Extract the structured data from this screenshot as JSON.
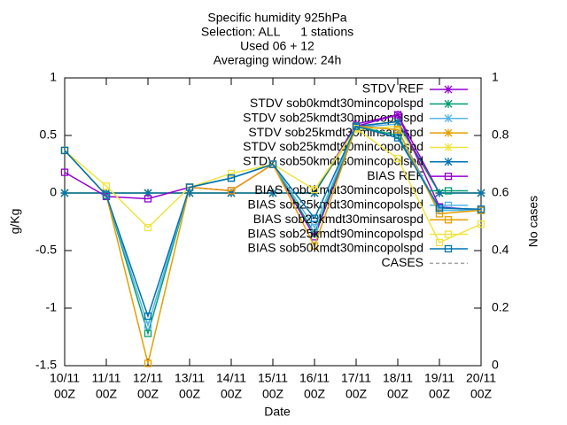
{
  "chart_data": {
    "type": "line",
    "title": [
      "Specific humidity 925hPa",
      "Selection: ALL      1 stations",
      "Used 06 + 12",
      "Averaging window: 24h"
    ],
    "xlabel": "Date",
    "ylabel": "g/Kg",
    "y2label": "No cases",
    "categories": [
      [
        "10/11",
        "00Z"
      ],
      [
        "11/11",
        "00Z"
      ],
      [
        "12/11",
        "00Z"
      ],
      [
        "13/11",
        "00Z"
      ],
      [
        "14/11",
        "00Z"
      ],
      [
        "15/11",
        "00Z"
      ],
      [
        "16/11",
        "00Z"
      ],
      [
        "17/11",
        "00Z"
      ],
      [
        "18/11",
        "00Z"
      ],
      [
        "19/11",
        "00Z"
      ],
      [
        "20/11",
        "00Z"
      ]
    ],
    "ylim": [
      -1.5,
      1
    ],
    "yticks": [
      -1.5,
      -1,
      -0.5,
      0,
      0.5,
      1
    ],
    "y2lim": [
      0,
      1
    ],
    "y2ticks": [
      0,
      0.2,
      0.4,
      0.6,
      0.8,
      1
    ],
    "grid": false,
    "legend": "top-right",
    "series": [
      {
        "name": "STDV REF",
        "color": "#9400d3",
        "marker": "star",
        "values": [
          0,
          0,
          0,
          0,
          0,
          0,
          0,
          0.6,
          0.68,
          0,
          0
        ]
      },
      {
        "name": "STDV sob0kmdt30mincopolspd",
        "color": "#009e73",
        "marker": "star",
        "values": [
          0,
          0,
          0,
          0,
          0,
          0,
          0,
          0.58,
          0.62,
          0,
          0
        ]
      },
      {
        "name": "STDV sob25kmdt30mincopolspd",
        "color": "#56b4e9",
        "marker": "star",
        "values": [
          0,
          0,
          0,
          0,
          0,
          0,
          0,
          0.57,
          0.6,
          0,
          0
        ]
      },
      {
        "name": "STDV sob25kmdt30minsarospd",
        "color": "#e69f00",
        "marker": "star",
        "values": [
          0,
          0,
          0,
          0,
          0,
          0,
          0,
          0.58,
          0.62,
          0,
          0
        ]
      },
      {
        "name": "STDV sob25kmdt90mincopolspd",
        "color": "#f0e442",
        "marker": "star",
        "values": [
          0,
          0,
          0,
          0,
          0,
          0,
          0,
          0.55,
          0.58,
          0,
          0
        ]
      },
      {
        "name": "STDV sob50kmdt30mincopolspd",
        "color": "#0072b2",
        "marker": "star",
        "values": [
          0,
          0,
          0,
          0,
          0,
          0,
          0,
          0.58,
          0.62,
          0,
          0
        ]
      },
      {
        "name": "BIAS REF",
        "color": "#9400d3",
        "marker": "square",
        "values": [
          0.18,
          -0.03,
          -0.05,
          0.05,
          0.02,
          0.25,
          -0.38,
          0.58,
          0.68,
          -0.12,
          -0.15
        ]
      },
      {
        "name": "BIAS sob0kmdt30mincopolspd",
        "color": "#009e73",
        "marker": "square",
        "values": [
          0.37,
          -0.02,
          -1.22,
          0.05,
          0.13,
          0.25,
          -0.35,
          0.58,
          0.5,
          -0.15,
          -0.15
        ]
      },
      {
        "name": "BIAS sob25kmdt30mincopolspd",
        "color": "#56b4e9",
        "marker": "square",
        "values": [
          0.37,
          -0.02,
          -1.15,
          0.05,
          0.13,
          0.25,
          -0.3,
          0.58,
          0.55,
          -0.15,
          -0.15
        ]
      },
      {
        "name": "BIAS sob25kmdt30minsarospd",
        "color": "#e69f00",
        "marker": "square",
        "values": [
          0.37,
          -0.02,
          -1.48,
          0.05,
          0.02,
          0.25,
          -0.46,
          0.58,
          0.55,
          -0.18,
          -0.15
        ]
      },
      {
        "name": "BIAS sob25kmdt90mincopolspd",
        "color": "#f0e442",
        "marker": "square",
        "values": [
          0.37,
          0.06,
          -0.3,
          0.05,
          0.17,
          0.25,
          0.03,
          0.56,
          0.3,
          -0.43,
          -0.27
        ]
      },
      {
        "name": "BIAS sob50kmdt30mincopolspd",
        "color": "#0072b2",
        "marker": "square",
        "values": [
          0.37,
          -0.02,
          -1.07,
          0.05,
          0.13,
          0.25,
          -0.22,
          0.58,
          0.48,
          -0.13,
          -0.14
        ]
      },
      {
        "name": "CASES",
        "color": "#a0a0a0",
        "marker": "none",
        "dashed": true,
        "axis": "y2",
        "values": [
          null,
          null,
          null,
          null,
          null,
          null,
          null,
          null,
          null,
          null,
          null
        ]
      }
    ]
  }
}
